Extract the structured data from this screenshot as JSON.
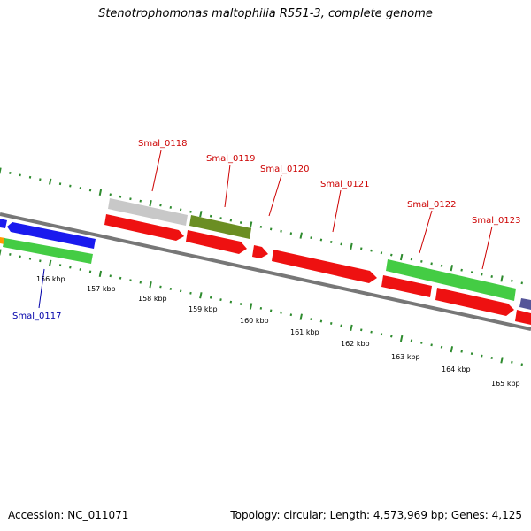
{
  "title": "Stenotrophomonas maltophilia R551-3, complete genome",
  "footer": {
    "accession": "Accession: NC_011071",
    "summary": "Topology: circular; Length: 4,573,969 bp; Genes: 4,125"
  },
  "colors": {
    "backbone": "#808080",
    "tick": "#2e8b2e",
    "label_red": "#cc0000",
    "label_blue": "#0000aa",
    "red": "#ee1111",
    "blue": "#1a1aee",
    "green": "#44cc44",
    "gray": "#c8c8c8",
    "olive": "#6b8e23",
    "orange": "#ff9900",
    "purple": "#555599"
  },
  "scale": {
    "labels": [
      "156 kbp",
      "157 kbp",
      "158 kbp",
      "159 kbp",
      "160 kbp",
      "161 kbp",
      "162 kbp",
      "163 kbp",
      "164 kbp",
      "165 kbp"
    ]
  },
  "genes": [
    {
      "label": "Smal_0117",
      "strand": "minus",
      "color": "green"
    },
    {
      "label": "Smal_0118",
      "strand": "plus",
      "color": "gray"
    },
    {
      "label": "Smal_0119",
      "strand": "plus",
      "color": "olive"
    },
    {
      "label": "Smal_0120",
      "strand": "plus",
      "color": "red"
    },
    {
      "label": "Smal_0121",
      "strand": "plus",
      "color": "red"
    },
    {
      "label": "Smal_0122",
      "strand": "plus",
      "color": "green"
    },
    {
      "label": "Smal_0123",
      "strand": "plus",
      "color": "red"
    }
  ]
}
